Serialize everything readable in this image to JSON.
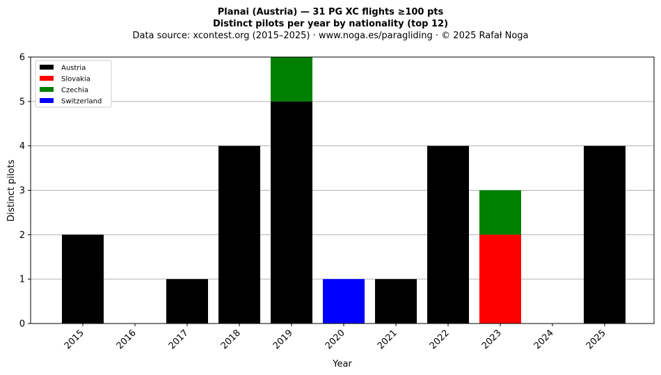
{
  "chart_data": {
    "type": "bar",
    "stacked": true,
    "title": "Planai (Austria)  —  31 PG XC flights ≥100 pts",
    "subtitle": "Distinct pilots per year by nationality (top 12)",
    "source": "Data source: xcontest.org (2015–2025)  ·  www.noga.es/paragliding  ·  © 2025 Rafał Noga",
    "xlabel": "Year",
    "ylabel": "Distinct pilots",
    "ylim": [
      0,
      6
    ],
    "yticks": [
      "0",
      "1",
      "2",
      "3",
      "4",
      "5",
      "6"
    ],
    "grid": "horizontal",
    "legend_position": "top-left",
    "categories": [
      "2015",
      "2016",
      "2017",
      "2018",
      "2019",
      "2020",
      "2021",
      "2022",
      "2023",
      "2024",
      "2025"
    ],
    "series": [
      {
        "name": "Austria",
        "color": "#000000",
        "values": [
          2,
          0,
          1,
          4,
          5,
          0,
          1,
          4,
          0,
          0,
          4
        ]
      },
      {
        "name": "Slovakia",
        "color": "#ff0000",
        "values": [
          0,
          0,
          0,
          0,
          0,
          0,
          0,
          0,
          2,
          0,
          0
        ]
      },
      {
        "name": "Czechia",
        "color": "#008000",
        "values": [
          0,
          0,
          0,
          0,
          1,
          0,
          0,
          0,
          1,
          0,
          0
        ]
      },
      {
        "name": "Switzerland",
        "color": "#0000ff",
        "values": [
          0,
          0,
          0,
          0,
          0,
          1,
          0,
          0,
          0,
          0,
          0
        ]
      }
    ]
  }
}
